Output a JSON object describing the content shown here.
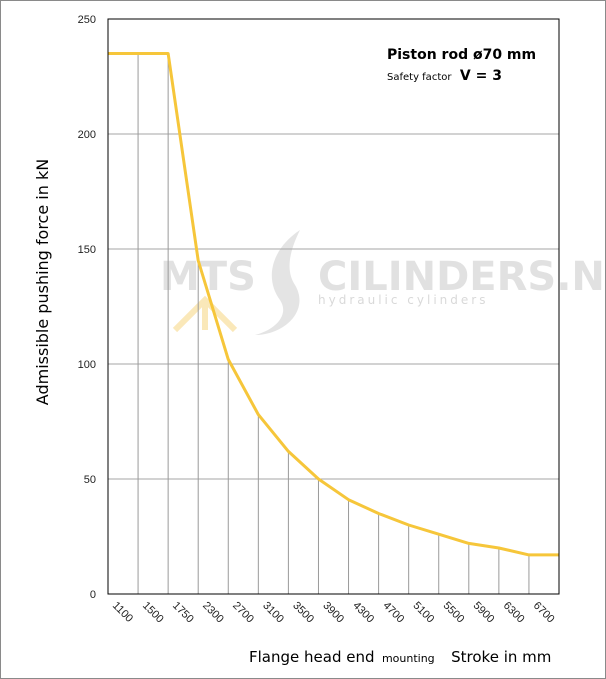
{
  "chart_data": {
    "type": "line",
    "title": "",
    "ylabel": "Admissible  pushing  force in kN",
    "xlabel_main": "Flange head end",
    "xlabel_small": "mounting",
    "xlabel_right": "Stroke in mm",
    "annotation_line1": "Piston rod ø70 mm",
    "annotation_line2_small": "Safety factor",
    "annotation_line2_big": "V = 3",
    "ylim": [
      0,
      250
    ],
    "yticks": [
      "0",
      "50",
      "100",
      "150",
      "200",
      "250"
    ],
    "categories": [
      "1100",
      "1500",
      "1750",
      "2300",
      "2700",
      "3100",
      "3500",
      "3900",
      "4300",
      "4700",
      "5100",
      "5500",
      "5900",
      "6300",
      "6700"
    ],
    "series": [
      {
        "x_index": [
          0,
          1,
          2,
          3,
          4,
          5,
          6,
          7,
          8,
          9,
          10,
          11,
          12,
          13,
          14
        ],
        "values": [
          235,
          235,
          235,
          145,
          102,
          78,
          62,
          50,
          41,
          35,
          30,
          26,
          22,
          20,
          17
        ],
        "color": "#f6c63a"
      }
    ],
    "grid": "on",
    "watermark": {
      "left": "MTS",
      "right": "CILINDERS.NL",
      "tagline": "hydraulic  cylinders"
    }
  }
}
